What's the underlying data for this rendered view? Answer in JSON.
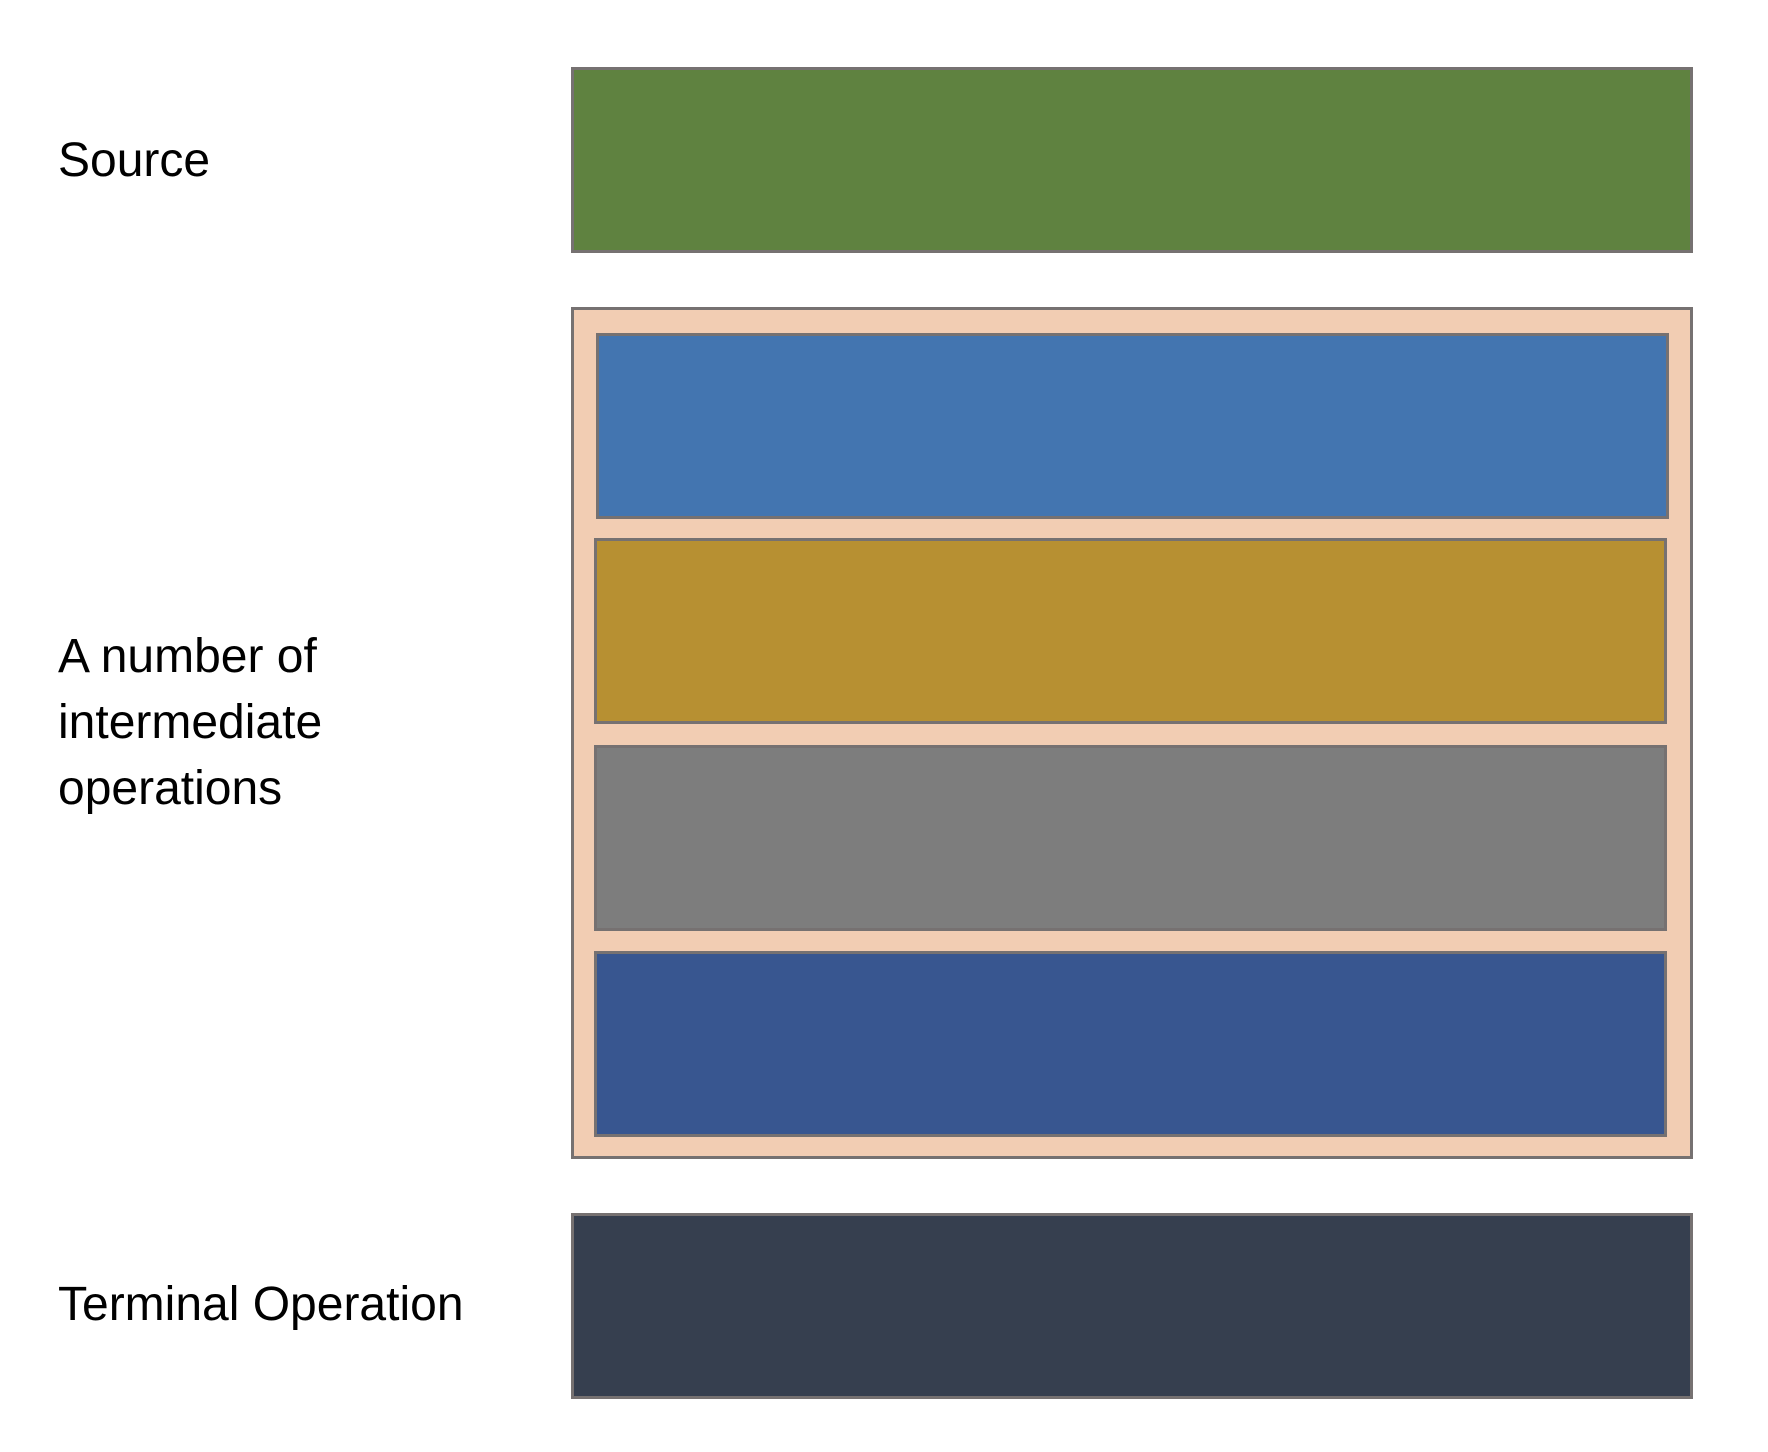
{
  "labels": {
    "source": "Source",
    "intermediate": "A number of\nintermediate\noperations",
    "terminal": "Terminal Operation"
  },
  "colors": {
    "source": "#5f8240",
    "container": "#f2cdb3",
    "op1": "#4375b0",
    "op2": "#b79032",
    "op3": "#7d7d7d",
    "op4": "#385690",
    "terminal": "#363f4f",
    "border": "#767171"
  }
}
